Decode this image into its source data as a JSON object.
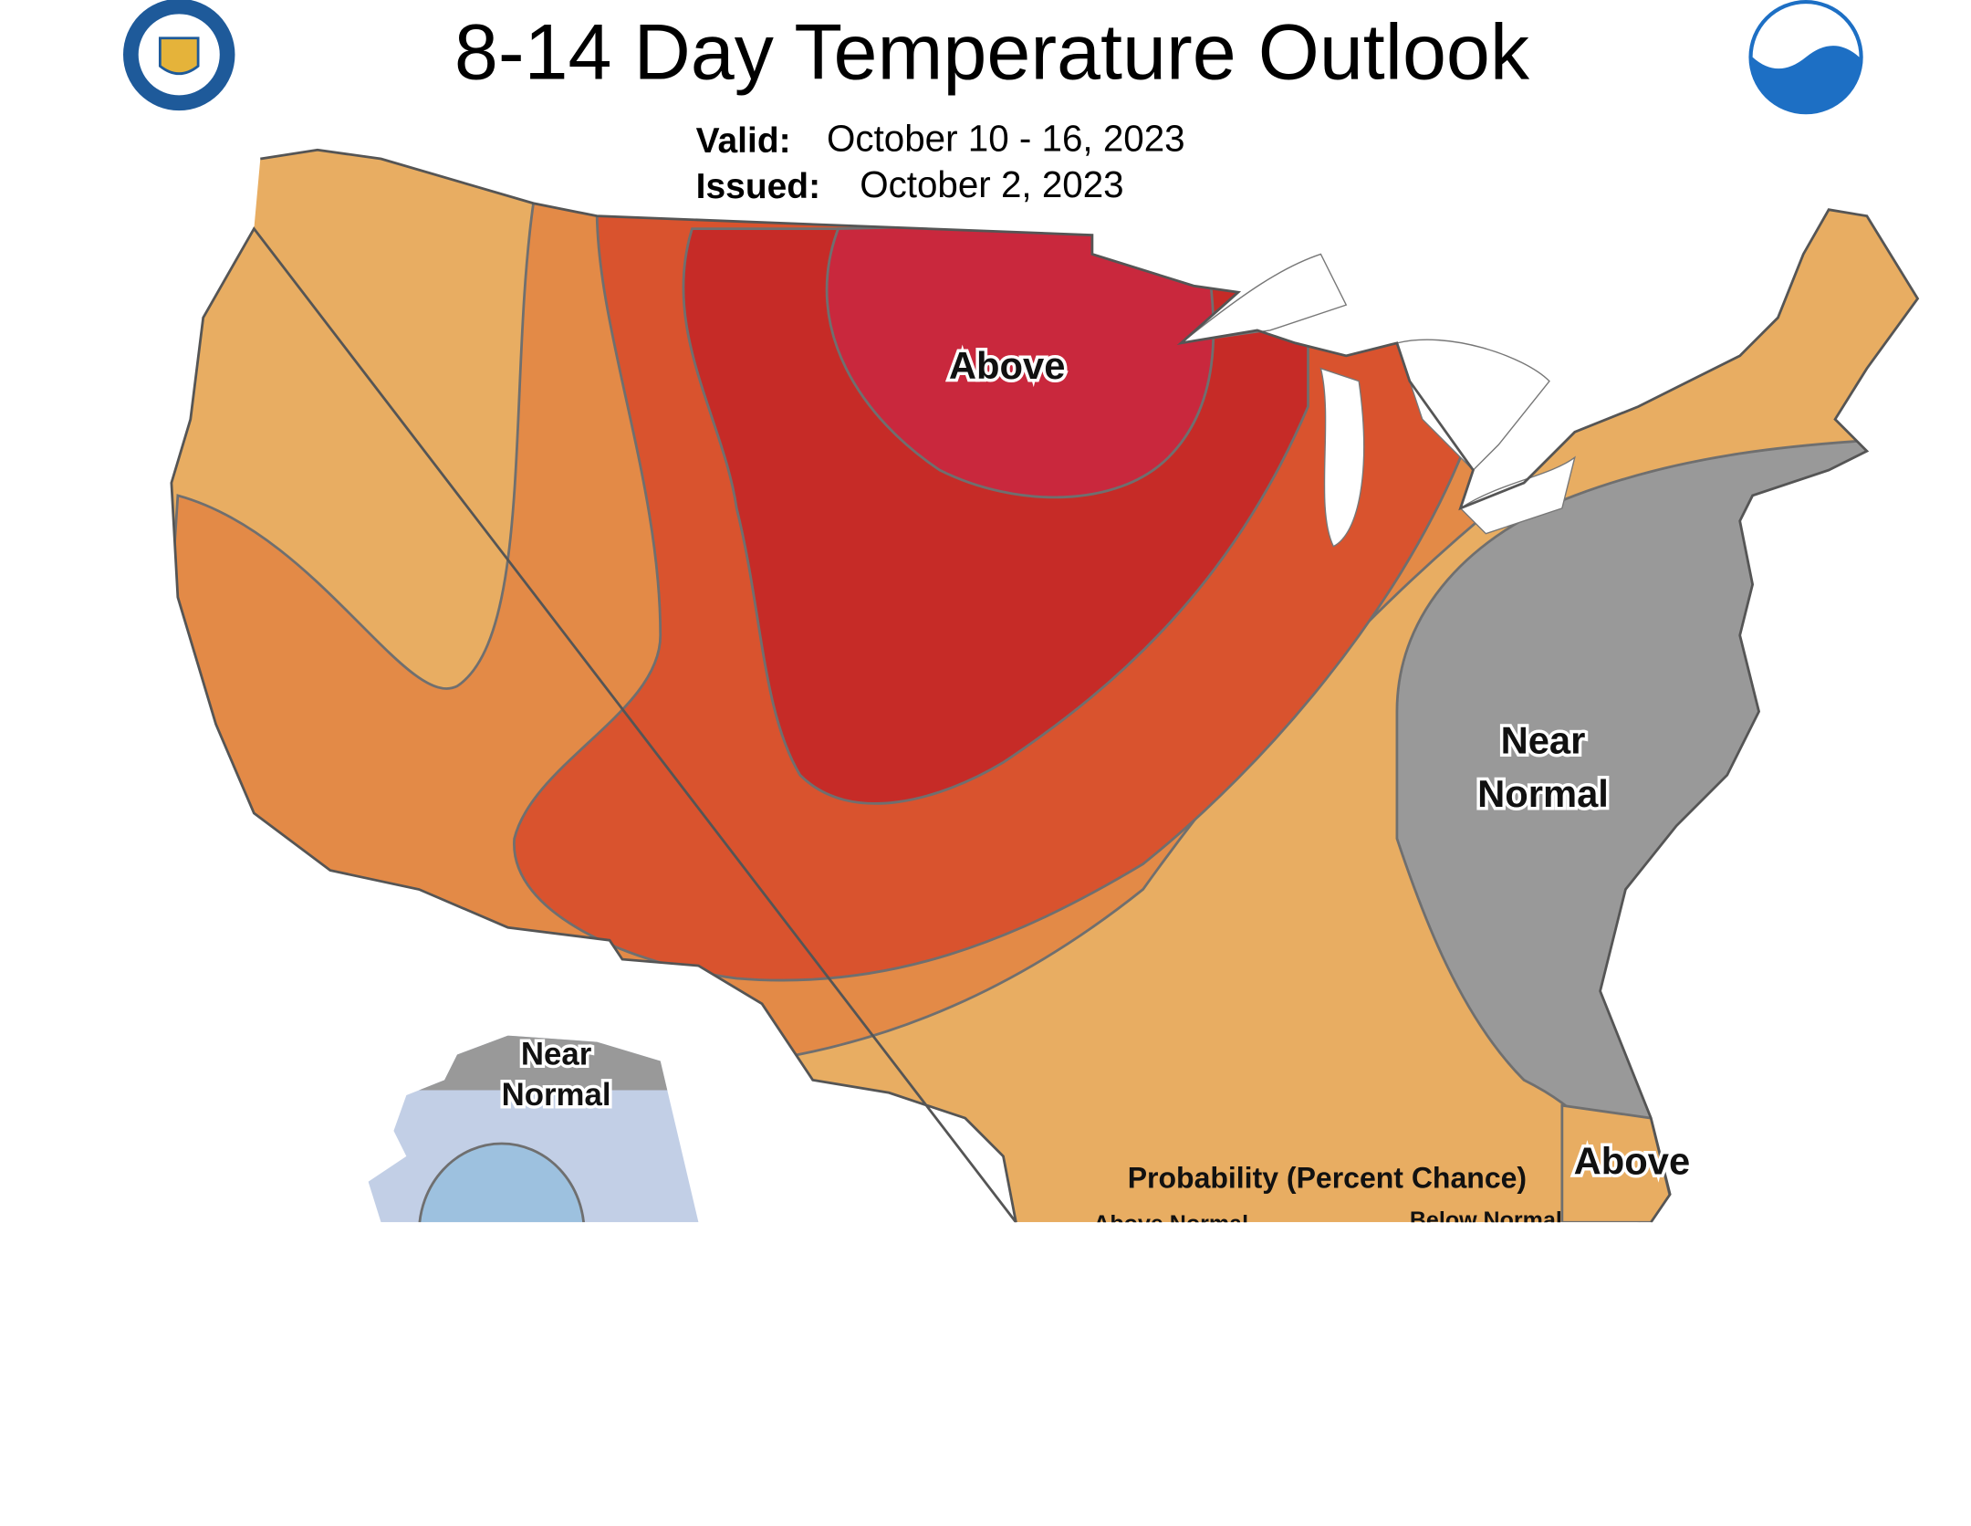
{
  "header": {
    "title": "8-14 Day Temperature Outlook",
    "valid_label": "Valid:",
    "valid_dates": "October 10 - 16, 2023",
    "issued_label": "Issued:",
    "issued_date": "October 2, 2023"
  },
  "logos": {
    "noaa": "NOAA"
  },
  "map_labels": {
    "above_north": "Above",
    "near_normal_east": [
      "Near",
      "Normal"
    ],
    "above_florida": "Above",
    "alaska_near_normal": [
      "Near",
      "Normal"
    ]
  },
  "legend": {
    "title": "Probability (Percent Chance)",
    "above_normal": "Above Normal",
    "below_normal": "Below Normal"
  }
}
